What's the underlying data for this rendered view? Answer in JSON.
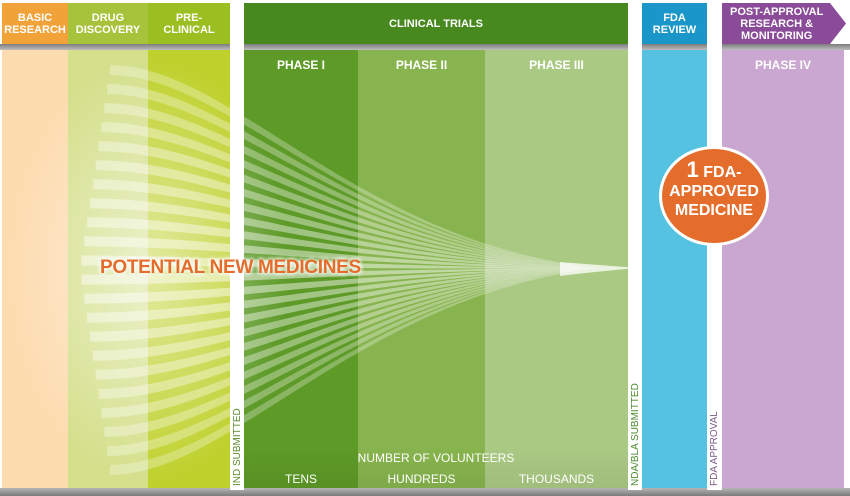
{
  "headers": {
    "basic_research": "BASIC\nRESEARCH",
    "drug_discovery": "DRUG\nDISCOVERY",
    "pre_clinical": "PRE-\nCLINICAL",
    "clinical_trials": "CLINICAL TRIALS",
    "fda_review": "FDA\nREVIEW",
    "post_approval": "POST-APPROVAL\nRESEARCH &\nMONITORING"
  },
  "phases": {
    "phase1": "PHASE I",
    "phase2": "PHASE II",
    "phase3": "PHASE III",
    "phase4": "PHASE IV"
  },
  "main_label": "POTENTIAL NEW MEDICINES",
  "badge": {
    "number": "1",
    "line1": "FDA-",
    "line2": "APPROVED",
    "line3": "MEDICINE"
  },
  "milestones": {
    "ind": "IND SUBMITTED",
    "nda": "NDA/BLA SUBMITTED",
    "fda_approval": "FDA APPROVAL"
  },
  "volunteers": {
    "title": "NUMBER OF VOLUNTEERS",
    "tens": "TENS",
    "hundreds": "HUNDREDS",
    "thousands": "THOUSANDS"
  },
  "colors": {
    "basic": "#fddcb0",
    "drug": "#d4e08c",
    "pre": "#bfd12d",
    "phase1": "#5d9a27",
    "phase2": "#87b44e",
    "phase3": "#aac983",
    "fda": "#55c2e2",
    "phase4": "#caa7d1",
    "accent": "#e46d2b"
  }
}
